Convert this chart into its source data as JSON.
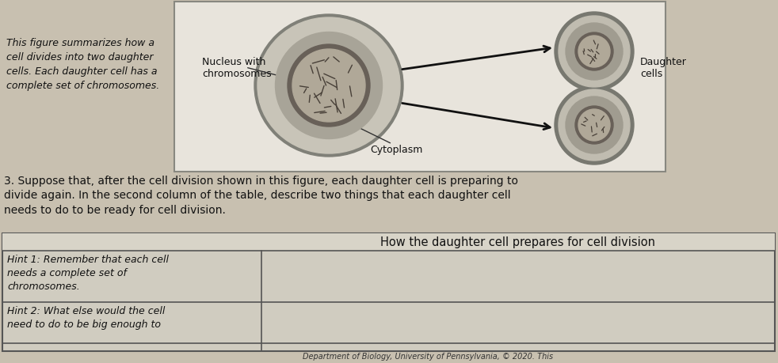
{
  "bg_color": "#c8c0b0",
  "page_bg": "#c8c0b0",
  "diagram_bg": "#e8e4dc",
  "diagram_border": "#888880",
  "title_text": "3. Suppose that, after the cell division shown in this figure, each daughter cell is preparing to\ndivide again. In the second column of the table, describe two things that each daughter cell\nneeds to do to be ready for cell division.",
  "left_desc": "This figure summarizes how a\ncell divides into two daughter\ncells. Each daughter cell has a\ncomplete set of chromosomes.",
  "table_header": "How the daughter cell prepares for cell division",
  "hint1": "Hint 1: Remember that each cell\nneeds a complete set of\nchromosomes.",
  "hint2": "Hint 2: What else would the cell\nneed to do to be big enough to",
  "footer": "Department of Biology, University of Pennsylvania, © 2020. This",
  "arrow_color": "#111111",
  "table_line_color": "#555555",
  "table_bg": "#d0ccc0",
  "font_size_desc": 9,
  "font_size_title": 10,
  "font_size_table": 9,
  "font_size_footer": 7,
  "cell_outer": "#888880",
  "cell_cyto_outer": "#c0bdb0",
  "cell_cyto_inner": "#a8a498",
  "cell_nuc_ring": "#706860",
  "cell_nuc_fill": "#b0a898",
  "cell_chromatin": "#555048",
  "small_cell_outer": "#888880",
  "small_cell_cyto": "#b8b4a8",
  "small_cell_nuc_ring": "#686058",
  "small_cell_nuc_fill": "#a09888",
  "small_cell_chromatin": "#504840"
}
